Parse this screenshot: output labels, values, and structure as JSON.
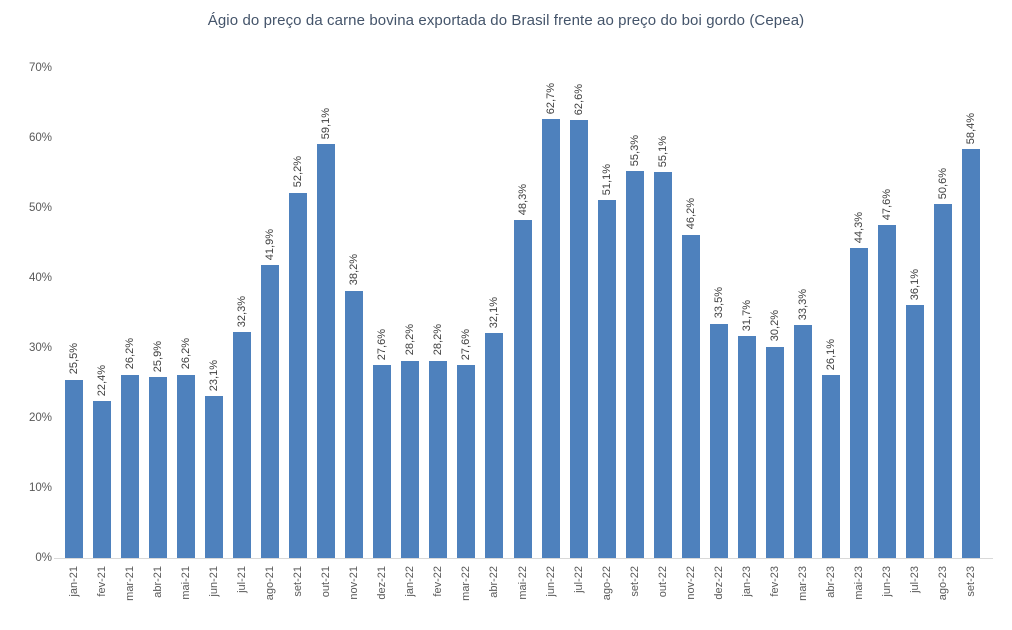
{
  "chart_data": {
    "type": "bar",
    "title": "Ágio do preço da carne bovina exportada do Brasil frente ao preço do boi gordo (Cepea)",
    "xlabel": "",
    "ylabel": "",
    "categories": [
      "jan-21",
      "fev-21",
      "mar-21",
      "abr-21",
      "mai-21",
      "jun-21",
      "jul-21",
      "ago-21",
      "set-21",
      "out-21",
      "nov-21",
      "dez-21",
      "jan-22",
      "fev-22",
      "mar-22",
      "abr-22",
      "mai-22",
      "jun-22",
      "jul-22",
      "ago-22",
      "set-22",
      "out-22",
      "nov-22",
      "dez-22",
      "jan-23",
      "fev-23",
      "mar-23",
      "abr-23",
      "mai-23",
      "jun-23",
      "jul-23",
      "ago-23",
      "set-23"
    ],
    "values": [
      25.5,
      22.4,
      26.2,
      25.9,
      26.2,
      23.1,
      32.3,
      41.9,
      52.2,
      59.1,
      38.2,
      27.6,
      28.2,
      28.2,
      27.6,
      32.1,
      48.3,
      62.7,
      62.6,
      51.1,
      55.3,
      55.1,
      46.2,
      33.5,
      31.7,
      30.2,
      33.3,
      26.1,
      44.3,
      47.6,
      36.1,
      50.6,
      58.4
    ],
    "value_labels": [
      "25,5%",
      "22,4%",
      "26,2%",
      "25,9%",
      "26,2%",
      "23,1%",
      "32,3%",
      "41,9%",
      "52,2%",
      "59,1%",
      "38,2%",
      "27,6%",
      "28,2%",
      "28,2%",
      "27,6%",
      "32,1%",
      "48,3%",
      "62,7%",
      "62,6%",
      "51,1%",
      "55,3%",
      "55,1%",
      "46,2%",
      "33,5%",
      "31,7%",
      "30,2%",
      "33,3%",
      "26,1%",
      "44,3%",
      "47,6%",
      "36,1%",
      "50,6%",
      "58,4%"
    ],
    "ylim": [
      0,
      70
    ],
    "ytick_values": [
      0,
      10,
      20,
      30,
      40,
      50,
      60,
      70
    ],
    "ytick_labels": [
      "0%",
      "10%",
      "20%",
      "30%",
      "40%",
      "50%",
      "60%",
      "70%"
    ],
    "grid": false,
    "legend": false,
    "value_labels_rotated": true,
    "xtick_labels_rotated": true,
    "colors": {
      "bar": "#4E81BD",
      "value_label": "#404040",
      "axis_label": "#595959",
      "title": "#44546A",
      "baseline": "#D9D9D9",
      "background": "#FFFFFF"
    }
  }
}
